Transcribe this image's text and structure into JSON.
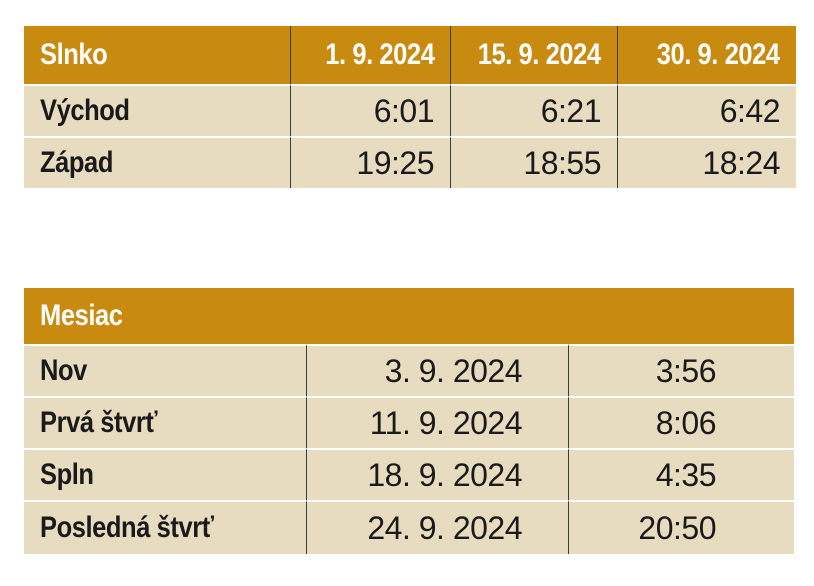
{
  "colors": {
    "header_bg": "#c98a10",
    "body_bg": "#e8dcc0",
    "header_text": "#ffffff",
    "body_text": "#1a1a1a"
  },
  "sun": {
    "header": [
      "Slnko",
      "1. 9. 2024",
      "15. 9. 2024",
      "30. 9. 2024"
    ],
    "rows": [
      {
        "label": "Východ",
        "values": [
          "6:01",
          "6:21",
          "6:42"
        ]
      },
      {
        "label": "Západ",
        "values": [
          "19:25",
          "18:55",
          "18:24"
        ]
      }
    ]
  },
  "moon": {
    "header": "Mesiac",
    "rows": [
      {
        "label": "Nov",
        "date": "3. 9. 2024",
        "time": "3:56"
      },
      {
        "label": "Prvá štvrť",
        "date": "11. 9. 2024",
        "time": "8:06"
      },
      {
        "label": "Spln",
        "date": "18. 9. 2024",
        "time": "4:35"
      },
      {
        "label": "Posledná štvrť",
        "date": "24. 9. 2024",
        "time": "20:50"
      }
    ]
  }
}
